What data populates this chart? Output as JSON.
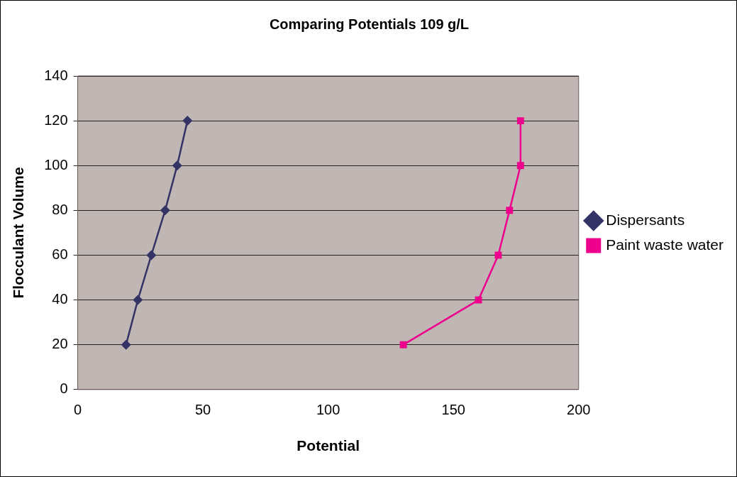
{
  "chart_data": {
    "type": "line",
    "title": "Comparing Potentials 109 g/L",
    "xlabel": "Potential",
    "ylabel": "Flocculant Volume",
    "xlim": [
      0,
      200
    ],
    "xticks": [
      0,
      50,
      100,
      150,
      200
    ],
    "ylim": [
      0,
      140
    ],
    "yticks": [
      0,
      20,
      40,
      60,
      80,
      100,
      120,
      140
    ],
    "grid": "y",
    "legend": "right",
    "series": [
      {
        "name": "Dispersants",
        "color": "#333366",
        "marker": "diamond",
        "x": [
          19.3,
          24,
          29.4,
          34.9,
          39.7,
          43.8
        ],
        "values": [
          20,
          40,
          60,
          80,
          100,
          120
        ]
      },
      {
        "name": "Paint waste water",
        "color": "#ec008c",
        "marker": "square",
        "x": [
          130,
          160,
          167.9,
          172.4,
          176.8,
          176.8
        ],
        "values": [
          20,
          40,
          60,
          80,
          100,
          120
        ]
      }
    ]
  }
}
